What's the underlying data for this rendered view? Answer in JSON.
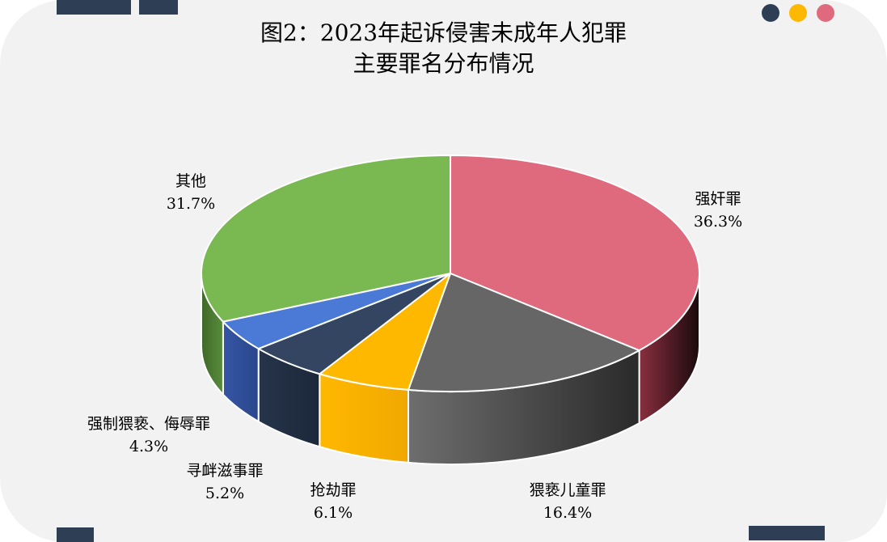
{
  "colors": {
    "deco_bars": "#2e3f55",
    "dot_1": "#2e3f55",
    "dot_2": "#ffb800",
    "dot_3": "#e06a7d",
    "background": "#f2f2f2"
  },
  "title": {
    "line1": "图2：2023年起诉侵害未成年人犯罪",
    "line2": "主要罪名分布情况"
  },
  "chart_data": {
    "type": "pie",
    "style": "3d",
    "title": "图2：2023年起诉侵害未成年人犯罪主要罪名分布情况",
    "slices": [
      {
        "label": "强奸罪",
        "value": 36.3,
        "value_label": "36.3%",
        "color": "#e06a7d"
      },
      {
        "label": "猥亵儿童罪",
        "value": 16.4,
        "value_label": "16.4%",
        "color": "#666666"
      },
      {
        "label": "抢劫罪",
        "value": 6.1,
        "value_label": "6.1%",
        "color": "#ffb800"
      },
      {
        "label": "寻衅滋事罪",
        "value": 5.2,
        "value_label": "5.2%",
        "color": "#334560"
      },
      {
        "label": "强制猥亵、侮辱罪",
        "value": 4.3,
        "value_label": "4.3%",
        "color": "#4a79d6"
      },
      {
        "label": "其他",
        "value": 31.7,
        "value_label": "31.7%",
        "color": "#7ab851"
      }
    ]
  }
}
